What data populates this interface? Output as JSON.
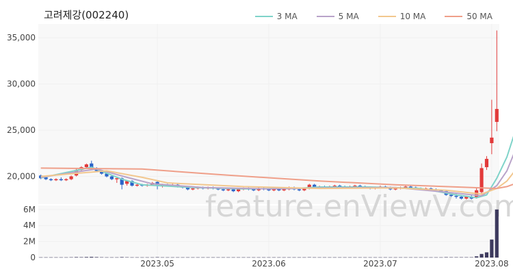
{
  "header": {
    "title": "고려제강(002240)"
  },
  "watermark": "feature.enViewV.com",
  "legend": [
    {
      "label": "3 MA",
      "color": "#7fd3c9"
    },
    {
      "label": "5 MA",
      "color": "#b9a3c9"
    },
    {
      "label": "10 MA",
      "color": "#f2c78e"
    },
    {
      "label": "50 MA",
      "color": "#ef9f89"
    }
  ],
  "colors": {
    "up": "#e23a3a",
    "down": "#2a63c9",
    "volume": "#3d3a5e",
    "grid": "#f0f0f0",
    "panel_bg": "#f8f8f8"
  },
  "chart_data": [
    {
      "type": "candlestick",
      "title": "고려제강(002240)",
      "ylim": [
        17000,
        36500
      ],
      "y_ticks": [
        "20,000",
        "25,000",
        "30,000",
        "35,000"
      ],
      "x_ticks": [
        "2023.05",
        "2023.06",
        "2023.07",
        "2023.08"
      ],
      "legend": [
        "3 MA",
        "5 MA",
        "10 MA",
        "50 MA"
      ],
      "grid": true,
      "legend_position": "top-right",
      "ohlc": [
        [
          20100,
          20200,
          19700,
          19800
        ],
        [
          19900,
          20000,
          19600,
          19700
        ],
        [
          19700,
          19800,
          19500,
          19600
        ],
        [
          19600,
          19800,
          19500,
          19700
        ],
        [
          19700,
          19900,
          19500,
          19600
        ],
        [
          19600,
          19800,
          19500,
          19700
        ],
        [
          19700,
          20100,
          19600,
          20000
        ],
        [
          20100,
          20900,
          20000,
          20700
        ],
        [
          20700,
          21100,
          20600,
          21000
        ],
        [
          21000,
          21400,
          20900,
          21300
        ],
        [
          21400,
          21700,
          20700,
          20900
        ],
        [
          20900,
          21000,
          20500,
          20600
        ],
        [
          20600,
          20700,
          20200,
          20300
        ],
        [
          20300,
          20400,
          19900,
          20000
        ],
        [
          20000,
          20100,
          19600,
          19700
        ],
        [
          19700,
          19900,
          19300,
          19800
        ],
        [
          19800,
          19900,
          18600,
          19100
        ],
        [
          19200,
          19600,
          19000,
          19500
        ],
        [
          19500,
          19600,
          18900,
          19000
        ],
        [
          19000,
          19200,
          18900,
          19100
        ],
        [
          19100,
          19200,
          18900,
          19000
        ],
        [
          19000,
          19200,
          18900,
          19100
        ],
        [
          19100,
          19400,
          19000,
          19300
        ],
        [
          19400,
          19500,
          18600,
          19000
        ],
        [
          19000,
          19200,
          18800,
          19100
        ],
        [
          19100,
          19200,
          18900,
          19000
        ],
        [
          19000,
          19200,
          18900,
          19100
        ],
        [
          19100,
          19200,
          18800,
          18900
        ],
        [
          18900,
          19000,
          18700,
          18800
        ],
        [
          18800,
          18900,
          18500,
          18600
        ],
        [
          18600,
          18800,
          18500,
          18700
        ],
        [
          18700,
          18900,
          18600,
          18800
        ],
        [
          18800,
          18900,
          18600,
          18700
        ],
        [
          18700,
          18900,
          18600,
          18800
        ],
        [
          18800,
          18900,
          18600,
          18700
        ],
        [
          18700,
          18800,
          18500,
          18600
        ],
        [
          18600,
          18700,
          18400,
          18500
        ],
        [
          18500,
          18700,
          18400,
          18600
        ],
        [
          18600,
          18700,
          18300,
          18400
        ],
        [
          18400,
          18700,
          18300,
          18600
        ],
        [
          18600,
          18800,
          18500,
          18700
        ],
        [
          18700,
          18800,
          18500,
          18600
        ],
        [
          18600,
          18700,
          18400,
          18500
        ],
        [
          18500,
          18800,
          18400,
          18700
        ],
        [
          18700,
          18800,
          18500,
          18600
        ],
        [
          18600,
          18700,
          18400,
          18500
        ],
        [
          18500,
          18700,
          18400,
          18600
        ],
        [
          18600,
          18700,
          18400,
          18500
        ],
        [
          18500,
          18700,
          18400,
          18600
        ],
        [
          18600,
          18900,
          18500,
          18800
        ],
        [
          18800,
          18900,
          18500,
          18600
        ],
        [
          18600,
          18700,
          18400,
          18500
        ],
        [
          18500,
          18800,
          18400,
          18700
        ],
        [
          18700,
          19200,
          18600,
          19100
        ],
        [
          19100,
          19200,
          18700,
          18800
        ],
        [
          18800,
          19000,
          18700,
          18900
        ],
        [
          18900,
          19000,
          18700,
          18800
        ],
        [
          18800,
          19000,
          18700,
          18900
        ],
        [
          18900,
          19100,
          18800,
          19000
        ],
        [
          19000,
          19100,
          18800,
          18900
        ],
        [
          18900,
          19000,
          18700,
          18800
        ],
        [
          18800,
          19000,
          18700,
          18900
        ],
        [
          18900,
          19100,
          18800,
          19000
        ],
        [
          19000,
          19100,
          18800,
          18900
        ],
        [
          18900,
          19000,
          18700,
          18800
        ],
        [
          18800,
          18900,
          18600,
          18700
        ],
        [
          18700,
          18900,
          18600,
          18800
        ],
        [
          18800,
          19000,
          18700,
          18900
        ],
        [
          18900,
          19000,
          18700,
          18800
        ],
        [
          18800,
          18900,
          18500,
          18600
        ],
        [
          18600,
          18800,
          18500,
          18700
        ],
        [
          18700,
          18900,
          18600,
          18800
        ],
        [
          18800,
          19000,
          18700,
          18900
        ],
        [
          18900,
          19000,
          18700,
          18800
        ],
        [
          18800,
          18900,
          18600,
          18700
        ],
        [
          18700,
          18800,
          18500,
          18600
        ],
        [
          18600,
          18800,
          18500,
          18700
        ],
        [
          18700,
          18800,
          18500,
          18600
        ],
        [
          18600,
          18700,
          18400,
          18500
        ],
        [
          18500,
          18600,
          18300,
          18400
        ],
        [
          18400,
          18500,
          17900,
          18000
        ],
        [
          18000,
          18200,
          17800,
          17900
        ],
        [
          17900,
          18100,
          17600,
          17800
        ],
        [
          17800,
          17900,
          17500,
          17600
        ],
        [
          17600,
          17900,
          17500,
          17800
        ],
        [
          17800,
          18000,
          17500,
          17600
        ],
        [
          17700,
          18800,
          17600,
          18500
        ],
        [
          18300,
          21400,
          18000,
          20900
        ],
        [
          21000,
          22200,
          20700,
          21900
        ],
        [
          23600,
          28300,
          22400,
          24200
        ],
        [
          25900,
          35800,
          24900,
          27300
        ]
      ],
      "ma": {
        "3 MA": [
          [
            0,
            19850
          ],
          [
            10,
            21000
          ],
          [
            16,
            19700
          ],
          [
            20,
            19100
          ],
          [
            30,
            18800
          ],
          [
            40,
            18650
          ],
          [
            50,
            18700
          ],
          [
            55,
            18850
          ],
          [
            65,
            18850
          ],
          [
            75,
            18700
          ],
          [
            82,
            18000
          ],
          [
            86,
            17700
          ],
          [
            88,
            18000
          ],
          [
            90,
            19800
          ],
          [
            92,
            22100
          ],
          [
            94,
            25500
          ]
        ],
        "5 MA": [
          [
            0,
            19900
          ],
          [
            11,
            20800
          ],
          [
            17,
            19900
          ],
          [
            22,
            19200
          ],
          [
            32,
            18800
          ],
          [
            45,
            18650
          ],
          [
            55,
            18750
          ],
          [
            70,
            18800
          ],
          [
            80,
            18300
          ],
          [
            87,
            17900
          ],
          [
            90,
            19000
          ],
          [
            92,
            20600
          ],
          [
            94,
            23300
          ]
        ],
        "10 MA": [
          [
            0,
            20000
          ],
          [
            13,
            20600
          ],
          [
            20,
            19900
          ],
          [
            25,
            19300
          ],
          [
            40,
            18900
          ],
          [
            55,
            18700
          ],
          [
            70,
            18750
          ],
          [
            80,
            18500
          ],
          [
            87,
            18100
          ],
          [
            90,
            18700
          ],
          [
            92,
            19500
          ],
          [
            94,
            20900
          ]
        ],
        "50 MA": [
          [
            0,
            20900
          ],
          [
            20,
            20800
          ],
          [
            35,
            20200
          ],
          [
            55,
            19500
          ],
          [
            70,
            19100
          ],
          [
            85,
            18800
          ],
          [
            90,
            18700
          ],
          [
            92,
            18900
          ],
          [
            94,
            19300
          ]
        ]
      }
    },
    {
      "type": "bar",
      "title": "",
      "ylim": [
        0,
        6500000
      ],
      "y_ticks": [
        "0",
        "2M",
        "4M",
        "6M"
      ],
      "values": [
        30000,
        30000,
        30000,
        30000,
        30000,
        30000,
        40000,
        60000,
        50000,
        70000,
        90000,
        60000,
        40000,
        30000,
        30000,
        30000,
        60000,
        40000,
        30000,
        30000,
        30000,
        30000,
        30000,
        50000,
        30000,
        30000,
        30000,
        30000,
        30000,
        30000,
        30000,
        30000,
        30000,
        30000,
        30000,
        30000,
        30000,
        30000,
        30000,
        30000,
        30000,
        30000,
        30000,
        30000,
        30000,
        30000,
        30000,
        30000,
        30000,
        30000,
        30000,
        30000,
        30000,
        40000,
        30000,
        30000,
        30000,
        30000,
        30000,
        30000,
        30000,
        30000,
        30000,
        30000,
        30000,
        30000,
        30000,
        30000,
        30000,
        30000,
        30000,
        30000,
        30000,
        30000,
        30000,
        30000,
        30000,
        30000,
        30000,
        30000,
        50000,
        40000,
        40000,
        40000,
        40000,
        40000,
        150000,
        450000,
        650000,
        2250000,
        6000000
      ]
    }
  ]
}
